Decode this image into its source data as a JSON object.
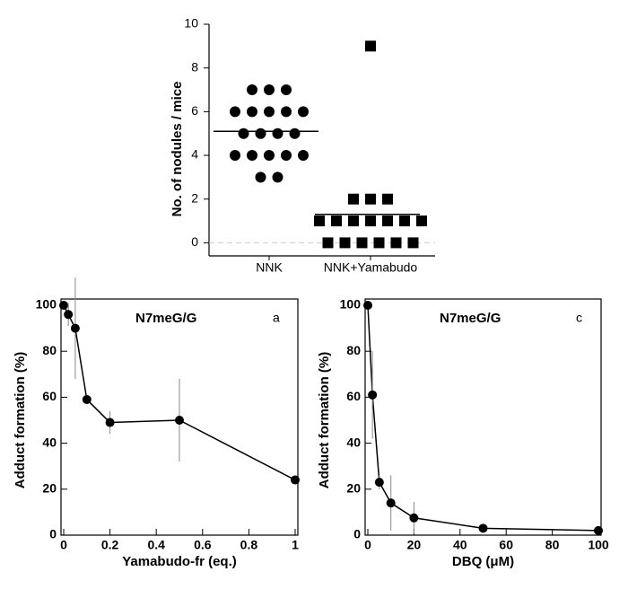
{
  "chart_data": [
    {
      "type": "strip",
      "y_label": "No. of nodules / mice",
      "categories": [
        "NNK",
        "NNK+Yamabudo"
      ],
      "markers": [
        "circle",
        "square"
      ],
      "values": [
        [
          7,
          7,
          7,
          6,
          6,
          6,
          6,
          6,
          5,
          5,
          5,
          5,
          4,
          4,
          4,
          4,
          4,
          3,
          3
        ],
        [
          9,
          2,
          2,
          2,
          1,
          1,
          1,
          1,
          1,
          1,
          1,
          0,
          0,
          0,
          0,
          0,
          0
        ]
      ],
      "means": [
        5.1,
        1.3
      ],
      "reference_line": 0,
      "ylim": [
        -0.6,
        10
      ],
      "yticks": [
        0,
        2,
        4,
        6,
        8,
        10
      ],
      "color": "#000000"
    },
    {
      "type": "line",
      "x_label": "Yamabudo-fr (eq.)",
      "y_label": "Adduct formation (%)",
      "annotations": [
        "N7meG/G",
        "a"
      ],
      "x": [
        0,
        0.02,
        0.05,
        0.1,
        0.2,
        0.5,
        1
      ],
      "values": [
        100,
        96,
        90,
        59,
        49,
        50,
        24
      ],
      "errors": [
        0,
        5,
        22,
        2,
        5,
        18,
        0
      ],
      "xlim": [
        0,
        1
      ],
      "xticks": [
        0,
        0.2,
        0.4,
        0.6,
        0.8,
        1
      ],
      "ylim": [
        0,
        100
      ],
      "yticks": [
        0,
        20,
        40,
        60,
        80,
        100
      ],
      "color": "#000000"
    },
    {
      "type": "line",
      "x_label": "DBQ  (μM)",
      "y_label": "Adduct formation (%)",
      "annotations": [
        "N7meG/G",
        "c"
      ],
      "x": [
        0,
        2,
        5,
        10,
        20,
        50,
        100
      ],
      "values": [
        100,
        61,
        23,
        14,
        7.5,
        3,
        2
      ],
      "errors": [
        0,
        19,
        3,
        12,
        7,
        0,
        0
      ],
      "xlim": [
        0,
        100
      ],
      "xticks": [
        0,
        20,
        40,
        60,
        80,
        100
      ],
      "ylim": [
        0,
        100
      ],
      "yticks": [
        0,
        20,
        40,
        60,
        80,
        100
      ],
      "color": "#000000"
    }
  ]
}
